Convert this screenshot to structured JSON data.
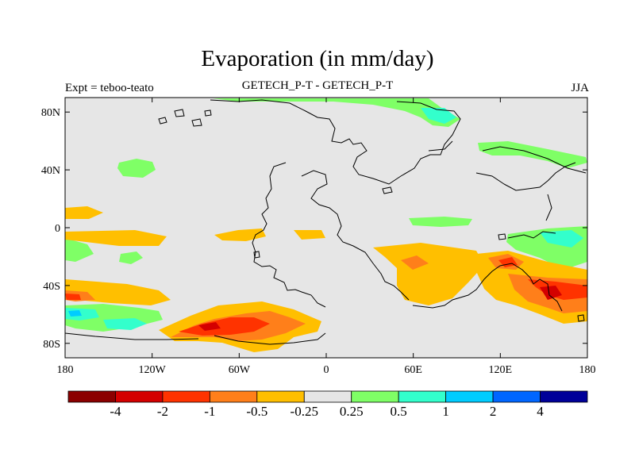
{
  "title": "Evaporation (in mm/day)",
  "subtitle_left": "Expt = teboo-teato",
  "subtitle_center": "GETECH_P-T - GETECH_P-T",
  "subtitle_right": "JJA",
  "x_ticks": [
    "180",
    "120W",
    "60W",
    "0",
    "60E",
    "120E",
    "180"
  ],
  "y_ticks": [
    "80N",
    "40N",
    "0",
    "40S",
    "80S"
  ],
  "colorbar": {
    "colors": [
      "#8b0000",
      "#d40000",
      "#ff3300",
      "#ff7f1a",
      "#ffbf00",
      "#e6e6e6",
      "#7fff66",
      "#33ffcc",
      "#00ccff",
      "#0066ff",
      "#000099"
    ],
    "labels": [
      "-4",
      "-2",
      "-1",
      "-0.5",
      "-0.25",
      "0.25",
      "0.5",
      "1",
      "2",
      "4"
    ]
  },
  "colors": {
    "background_field": "#e6e6e6",
    "coastline": "#000000"
  }
}
